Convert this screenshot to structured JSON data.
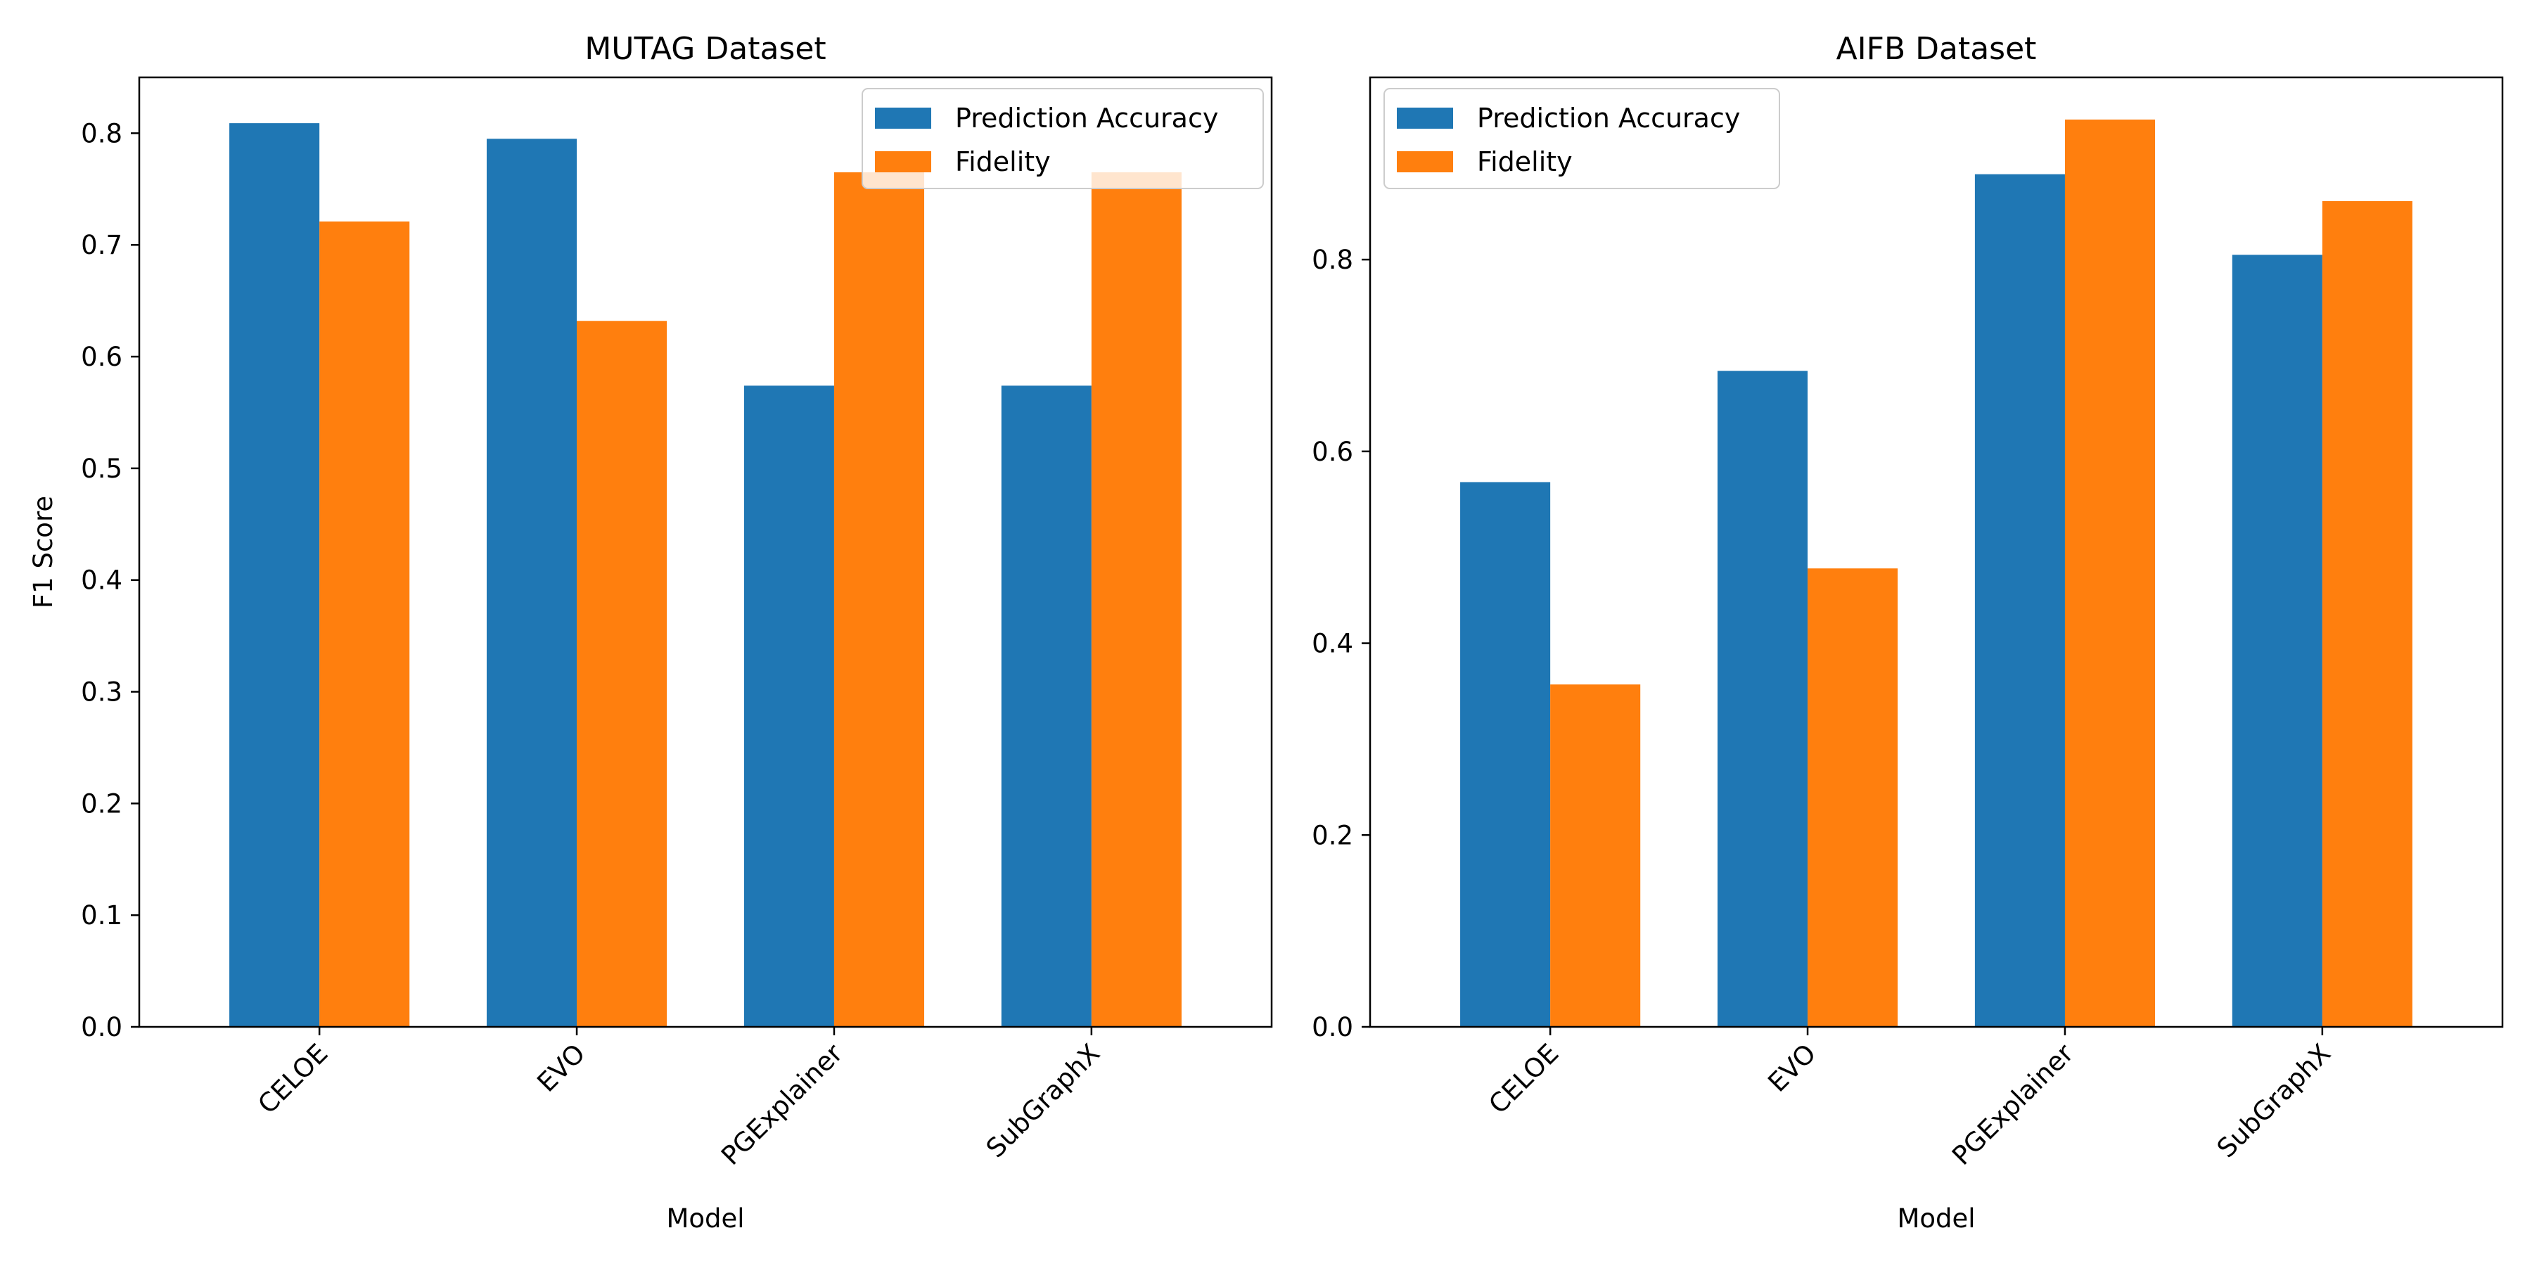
{
  "chart_data": [
    {
      "type": "bar",
      "title": "MUTAG Dataset",
      "xlabel": "Model",
      "ylabel": "F1 Score",
      "categories": [
        "CELOE",
        "EVO",
        "PGExplainer",
        "SubGraphX"
      ],
      "series": [
        {
          "name": "Prediction Accuracy",
          "color": "#1f77b4",
          "values": [
            0.809,
            0.795,
            0.574,
            0.574
          ]
        },
        {
          "name": "Fidelity",
          "color": "#ff7f0e",
          "values": [
            0.721,
            0.632,
            0.765,
            0.765
          ]
        }
      ],
      "ylim": [
        0,
        0.85
      ],
      "yticks": [
        0.0,
        0.1,
        0.2,
        0.3,
        0.4,
        0.5,
        0.6,
        0.7,
        0.8
      ],
      "ytick_labels": [
        "0.0",
        "0.1",
        "0.2",
        "0.3",
        "0.4",
        "0.5",
        "0.6",
        "0.7",
        "0.8"
      ],
      "grid": false,
      "legend_position": "upper right"
    },
    {
      "type": "bar",
      "title": "AIFB Dataset",
      "xlabel": "Model",
      "ylabel": "",
      "categories": [
        "CELOE",
        "EVO",
        "PGExplainer",
        "SubGraphX"
      ],
      "series": [
        {
          "name": "Prediction Accuracy",
          "color": "#1f77b4",
          "values": [
            0.568,
            0.684,
            0.889,
            0.805
          ]
        },
        {
          "name": "Fidelity",
          "color": "#ff7f0e",
          "values": [
            0.357,
            0.478,
            0.946,
            0.861
          ]
        }
      ],
      "ylim": [
        0,
        0.99
      ],
      "yticks": [
        0.0,
        0.2,
        0.4,
        0.6,
        0.8
      ],
      "ytick_labels": [
        "0.0",
        "0.2",
        "0.4",
        "0.6",
        "0.8"
      ],
      "grid": false,
      "legend_position": "upper left"
    }
  ]
}
